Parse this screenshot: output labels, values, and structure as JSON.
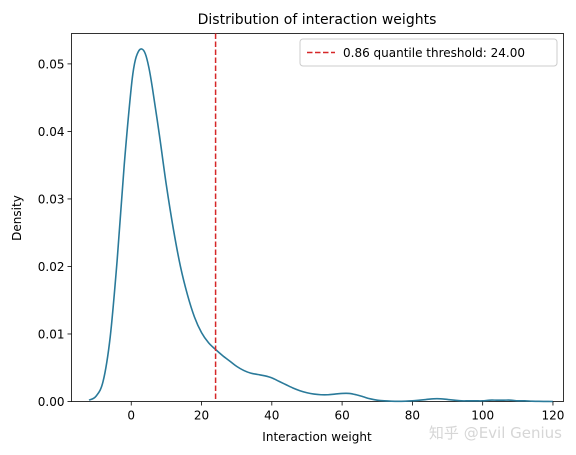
{
  "chart_data": {
    "type": "line",
    "title": "Distribution of interaction weights",
    "xlabel": "Interaction weight",
    "ylabel": "Density",
    "xlim": [
      -17,
      123
    ],
    "ylim": [
      0,
      0.0545
    ],
    "xticks": [
      0,
      20,
      40,
      60,
      80,
      100,
      120
    ],
    "xtick_labels": [
      "0",
      "20",
      "40",
      "60",
      "80",
      "100",
      "120"
    ],
    "yticks": [
      0,
      0.01,
      0.02,
      0.03,
      0.04,
      0.05
    ],
    "ytick_labels": [
      "0.00",
      "0.01",
      "0.02",
      "0.03",
      "0.04",
      "0.05"
    ],
    "grid": false,
    "legend_position": "upper right",
    "series": [
      {
        "name": "",
        "color": "#2a7a9a",
        "x": [
          -12,
          -10,
          -8,
          -6,
          -4,
          -2,
          0,
          1,
          2,
          3,
          4,
          5,
          6,
          8,
          10,
          12,
          14,
          16,
          18,
          20,
          22,
          24,
          26,
          28,
          30,
          32,
          34,
          36,
          38,
          40,
          42,
          44,
          46,
          48,
          50,
          52,
          54,
          56,
          58,
          60,
          62,
          64,
          66,
          68,
          70,
          72,
          74,
          76,
          78,
          80,
          82,
          84,
          86,
          88,
          90,
          92,
          94,
          96,
          98,
          100,
          102,
          104,
          106,
          108,
          110,
          112,
          114,
          116,
          118,
          120
        ],
        "y": [
          0.0002,
          0.0008,
          0.003,
          0.0095,
          0.021,
          0.035,
          0.0465,
          0.0502,
          0.0518,
          0.0522,
          0.0515,
          0.0495,
          0.0465,
          0.0395,
          0.032,
          0.0255,
          0.02,
          0.0158,
          0.0125,
          0.0102,
          0.0087,
          0.0077,
          0.0068,
          0.006,
          0.0052,
          0.0046,
          0.0042,
          0.004,
          0.0038,
          0.0035,
          0.003,
          0.0025,
          0.002,
          0.0016,
          0.0013,
          0.0011,
          0.001,
          0.001,
          0.0011,
          0.0012,
          0.0012,
          0.001,
          0.0007,
          0.0004,
          0.0002,
          0.0001,
          5e-05,
          3e-05,
          5e-05,
          0.0001,
          0.0002,
          0.0003,
          0.0004,
          0.0004,
          0.0003,
          0.0002,
          0.0001,
          0.0001,
          0.0001,
          0.0001,
          0.0002,
          0.0002,
          0.0002,
          0.0002,
          0.0001,
          0.0001,
          5e-05,
          2e-05,
          1e-05,
          0.0
        ]
      }
    ],
    "threshold": {
      "x": 24.0,
      "color": "#d62728",
      "style": "dashed",
      "label": "0.86 quantile threshold: 24.00"
    }
  },
  "watermark": "知乎 @Evil Genius"
}
